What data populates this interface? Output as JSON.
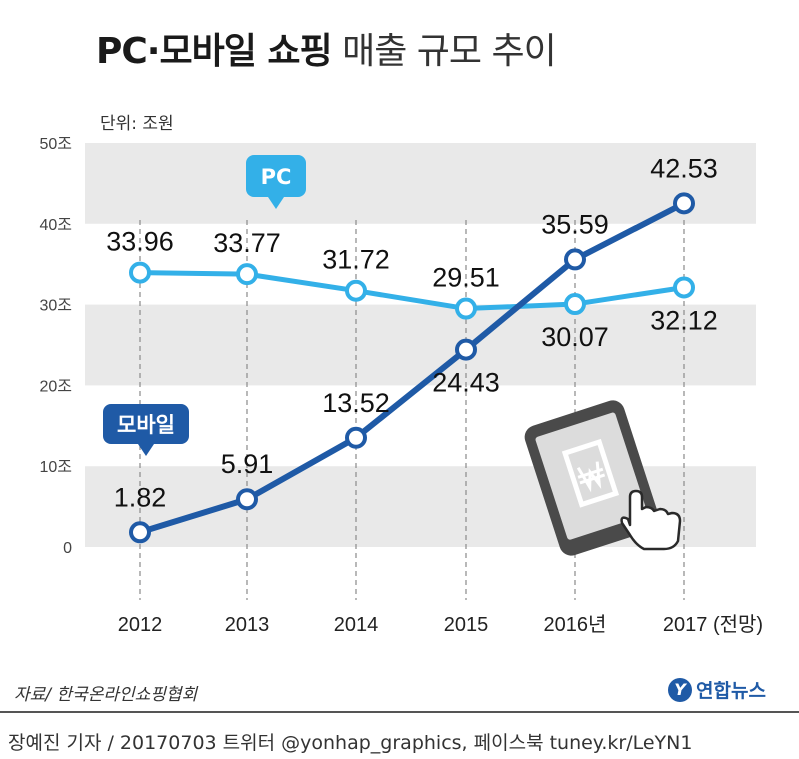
{
  "title_bold": "PC·모바일 쇼핑",
  "title_light": "매출 규모 추이",
  "unit": "단위: 조원",
  "source": "자료/ 한국온라인쇼핑협회",
  "credit": "장예진 기자 / 20170703 트위터 @yonhap_graphics, 페이스북 tuney.kr/LeYN1",
  "logo": {
    "mark": "Y",
    "name": "연합뉴스"
  },
  "colors": {
    "pc": "#33b0e8",
    "mobile": "#1f5aa6",
    "band": "#e9e9e9"
  },
  "chart_data": {
    "type": "line",
    "title": "PC·모바일 쇼핑 매출 규모 추이",
    "ylabel": "단위: 조원",
    "ylim": [
      0,
      50
    ],
    "yticks": [
      0,
      10,
      20,
      30,
      40,
      50
    ],
    "ytick_labels": [
      "0",
      "10조",
      "20조",
      "30조",
      "40조",
      "50조"
    ],
    "categories": [
      "2012",
      "2013",
      "2014",
      "2015",
      "2016년",
      "2017 (전망)"
    ],
    "series": [
      {
        "name": "PC",
        "values": [
          33.96,
          33.77,
          31.72,
          29.51,
          30.07,
          32.12
        ],
        "labels": [
          "33.96",
          "33.77",
          "31.72",
          "29.51",
          "30.07",
          "32.12"
        ]
      },
      {
        "name": "모바일",
        "values": [
          1.82,
          5.91,
          13.52,
          24.43,
          35.59,
          42.53
        ],
        "labels": [
          "1.82",
          "5.91",
          "13.52",
          "24.43",
          "35.59",
          "42.53"
        ]
      }
    ]
  }
}
